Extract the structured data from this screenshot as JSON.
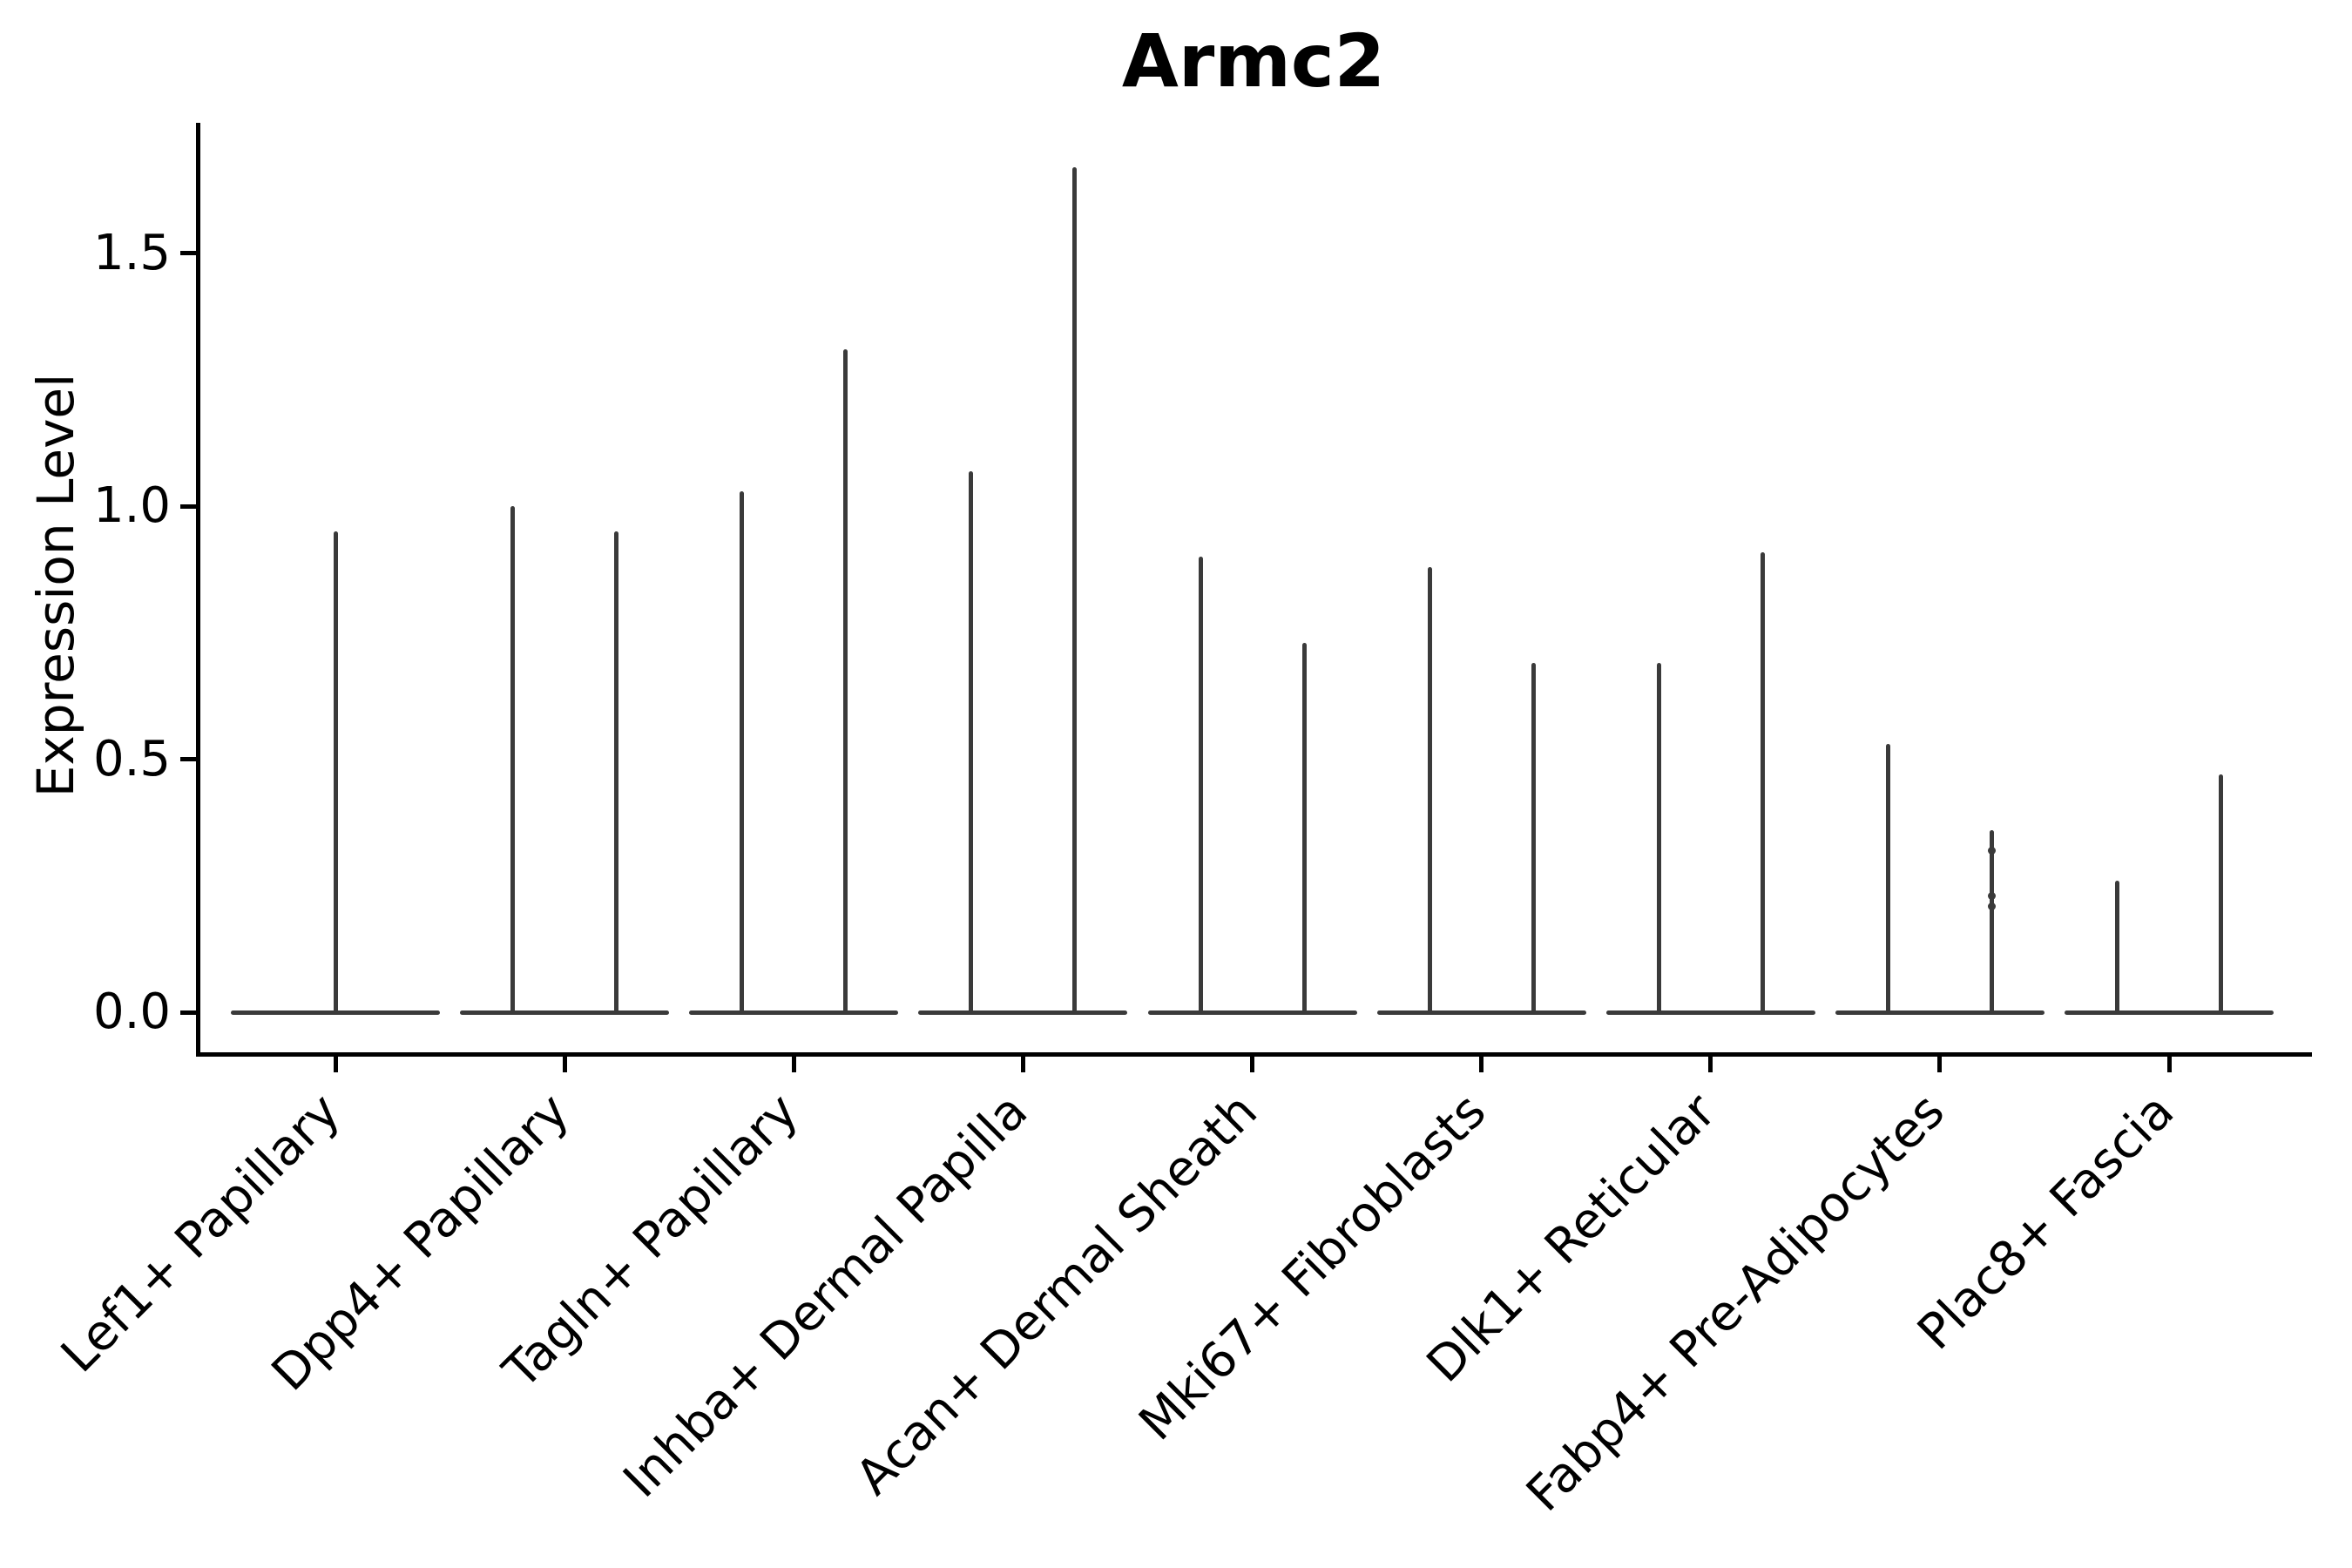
{
  "figure": {
    "background": "#ffffff"
  },
  "chart_data": {
    "type": "violin",
    "title": "Armc2",
    "xlabel": "",
    "ylabel": "Expression Level",
    "yticks": [
      0.0,
      0.5,
      1.0,
      1.5
    ],
    "ytick_labels": [
      "0.0",
      "0.5",
      "1.0",
      "1.5"
    ],
    "ylim": [
      -0.08,
      1.76
    ],
    "grid": false,
    "legend": "none",
    "x_tick_rotation": 45,
    "baseline_value": 0.0,
    "colors": {
      "violin": "#3a3a3a",
      "axis": "#000000",
      "text": "#000000",
      "background": "#ffffff"
    },
    "categories": [
      "Lef1+ Papillary",
      "Dpp4+ Papillary",
      "Tagln+ Papillary",
      "Inhba+ Dermal Papilla",
      "Acan+ Dermal Sheath",
      "Mki67+ Fibroblasts",
      "Dlk1+ Reticular",
      "Fabp4+ Pre-Adipocytes",
      "Plac8+ Fascia"
    ],
    "series": [
      {
        "category": "Lef1+ Papillary",
        "violins": [
          {
            "offset": 0,
            "peak": 0.95,
            "dots": []
          }
        ]
      },
      {
        "category": "Dpp4+ Papillary",
        "violins": [
          {
            "offset": -1,
            "peak": 1.0,
            "dots": []
          },
          {
            "offset": 1,
            "peak": 0.95,
            "dots": []
          }
        ]
      },
      {
        "category": "Tagln+ Papillary",
        "violins": [
          {
            "offset": -1,
            "peak": 1.03,
            "dots": []
          },
          {
            "offset": 1,
            "peak": 1.31,
            "dots": []
          }
        ]
      },
      {
        "category": "Inhba+ Dermal Papilla",
        "violins": [
          {
            "offset": -1,
            "peak": 1.07,
            "dots": []
          },
          {
            "offset": 1,
            "peak": 1.67,
            "dots": []
          }
        ]
      },
      {
        "category": "Acan+ Dermal Sheath",
        "violins": [
          {
            "offset": -1,
            "peak": 0.9,
            "dots": []
          },
          {
            "offset": 1,
            "peak": 0.73,
            "dots": []
          }
        ]
      },
      {
        "category": "Mki67+ Fibroblasts",
        "violins": [
          {
            "offset": -1,
            "peak": 0.88,
            "dots": []
          },
          {
            "offset": 1,
            "peak": 0.69,
            "dots": []
          }
        ]
      },
      {
        "category": "Dlk1+ Reticular",
        "violins": [
          {
            "offset": -1,
            "peak": 0.69,
            "dots": []
          },
          {
            "offset": 1,
            "peak": 0.91,
            "dots": []
          }
        ]
      },
      {
        "category": "Fabp4+ Pre-Adipocytes",
        "violins": [
          {
            "offset": -1,
            "peak": 0.53,
            "dots": []
          },
          {
            "offset": 1,
            "peak": 0.36,
            "dots": [
              0.32,
              0.23,
              0.21
            ]
          }
        ]
      },
      {
        "category": "Plac8+ Fascia",
        "violins": [
          {
            "offset": -1,
            "peak": 0.26,
            "dots": []
          },
          {
            "offset": 1,
            "peak": 0.47,
            "dots": []
          }
        ]
      }
    ]
  }
}
